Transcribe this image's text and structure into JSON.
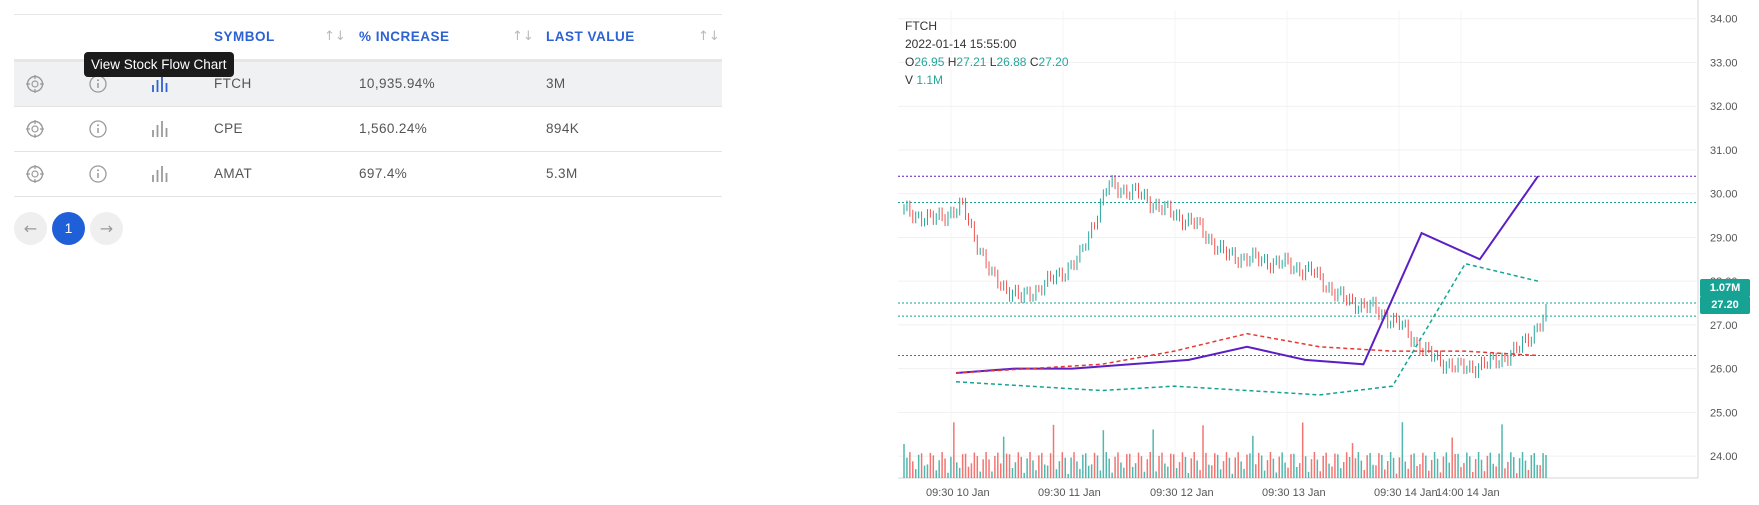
{
  "table": {
    "headers": {
      "symbol": "SYMBOL",
      "increase": "% INCREASE",
      "last_value": "LAST VALUE"
    },
    "sort_glyph": "↑↓",
    "tooltip": "View Stock Flow Chart",
    "rows": [
      {
        "symbol": "FTCH",
        "increase": "10,935.94%",
        "last_value": "3M",
        "highlighted": true
      },
      {
        "symbol": "CPE",
        "increase": "1,560.24%",
        "last_value": "894K",
        "highlighted": false
      },
      {
        "symbol": "AMAT",
        "increase": "697.4%",
        "last_value": "5.3M",
        "highlighted": false
      }
    ],
    "icons": [
      "target-icon",
      "info-icon",
      "bar-chart-icon"
    ]
  },
  "pagination": {
    "prev": "←",
    "current": "1",
    "next": "→"
  },
  "chart": {
    "symbol": "FTCH",
    "datetime": "2022-01-14 15:55:00",
    "ohlc": {
      "o_label": "O",
      "o": "26.95",
      "h_label": "H",
      "h": "27.21",
      "l_label": "L",
      "l": "26.88",
      "c_label": "C",
      "c": "27.20"
    },
    "volume": {
      "label": "V",
      "value": "1.1M"
    },
    "price_tags": {
      "volume": "1.07M",
      "close": "27.20"
    },
    "colors": {
      "up": "#26a69a",
      "down": "#ef5350",
      "indicator": "#5b1fc4",
      "band_upper": "#e53935",
      "band_lower": "#16a394"
    }
  },
  "chart_data": {
    "type": "line",
    "title": "FTCH",
    "y_ticks": [
      "34.00",
      "33.00",
      "32.00",
      "31.00",
      "30.00",
      "29.00",
      "28.00",
      "27.00",
      "26.00",
      "25.00",
      "24.00"
    ],
    "ylim": [
      23.5,
      34.2
    ],
    "x_ticks": [
      "09:30 10 Jan",
      "09:30 11 Jan",
      "09:30 12 Jan",
      "09:30 13 Jan",
      "09:30 14 Jan",
      "14:00 14 Jan"
    ],
    "series": [
      {
        "name": "price",
        "values": [
          29.6,
          29.4,
          29.7,
          28.1,
          27.6,
          28.0,
          28.5,
          30.2,
          30.0,
          29.6,
          29.3,
          28.6,
          28.5,
          28.4,
          28.2,
          27.6,
          27.4,
          27.0,
          26.3,
          26.0,
          26.1,
          26.4,
          27.2
        ]
      },
      {
        "name": "indicator",
        "values": [
          25.9,
          26.0,
          26.0,
          26.1,
          26.2,
          26.5,
          26.2,
          26.1,
          29.1,
          28.5,
          30.4
        ]
      },
      {
        "name": "upper band",
        "values": [
          25.9,
          26.0,
          26.1,
          26.4,
          26.8,
          26.5,
          26.4,
          26.4,
          26.3
        ]
      },
      {
        "name": "lower band",
        "values": [
          25.7,
          25.6,
          25.5,
          25.6,
          25.5,
          25.4,
          25.6,
          28.4,
          28.0
        ]
      }
    ],
    "hlines": [
      30.4,
      29.8,
      27.5,
      27.2,
      26.3
    ],
    "grid": true
  }
}
